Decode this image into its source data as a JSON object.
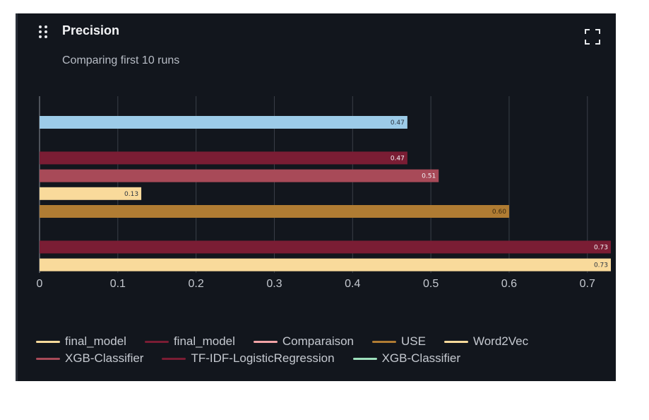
{
  "panel": {
    "title": "Precision",
    "subtitle": "Comparing first 10 runs",
    "icons": {
      "drag": "drag-handle-icon",
      "expand": "expand-icon"
    }
  },
  "chart_data": {
    "type": "bar",
    "orientation": "horizontal",
    "xlim": [
      0,
      0.73
    ],
    "xticks": [
      0,
      0.1,
      0.2,
      0.3,
      0.4,
      0.5,
      0.6,
      0.7
    ],
    "xtick_labels": [
      "0",
      "0.1",
      "0.2",
      "0.3",
      "0.4",
      "0.5",
      "0.6",
      "0.7"
    ],
    "grid": true,
    "bars": [
      {
        "value": 0.47,
        "label": "0.47",
        "color": "#9ccbe8",
        "label_color": "#2b3440"
      },
      {
        "value": null,
        "label": "",
        "color": "#9ee0bd",
        "label_color": "#2b3440"
      },
      {
        "value": 0.47,
        "label": "0.47",
        "color": "#7a1d34",
        "label_color": "#f2f3f5"
      },
      {
        "value": 0.51,
        "label": "0.51",
        "color": "#a84a58",
        "label_color": "#f2f3f5"
      },
      {
        "value": 0.13,
        "label": "0.13",
        "color": "#f9da9b",
        "label_color": "#2b3440"
      },
      {
        "value": 0.6,
        "label": "0.60",
        "color": "#b07c33",
        "label_color": "#3a2a10"
      },
      {
        "value": null,
        "label": "",
        "color": "#f2a3a6",
        "label_color": "#2b3440"
      },
      {
        "value": 0.73,
        "label": "0.73",
        "color": "#7a1d34",
        "label_color": "#f2f3f5"
      },
      {
        "value": 0.73,
        "label": "0.73",
        "color": "#f9da9b",
        "label_color": "#2b3440"
      }
    ],
    "legend": {
      "placement": "bottom",
      "rows": [
        [
          {
            "name": "final_model",
            "color": "#f9da9b"
          },
          {
            "name": "final_model",
            "color": "#7a1d34"
          },
          {
            "name": "Comparaison",
            "color": "#f2a3a6"
          },
          {
            "name": "USE",
            "color": "#b07c33"
          },
          {
            "name": "Word2Vec",
            "color": "#f9da9b"
          }
        ],
        [
          {
            "name": "XGB-Classifier",
            "color": "#a84a58"
          },
          {
            "name": "TF-IDF-LogisticRegression",
            "color": "#7a1d34"
          },
          {
            "name": "XGB-Classifier",
            "color": "#9ee0bd"
          }
        ]
      ]
    }
  }
}
